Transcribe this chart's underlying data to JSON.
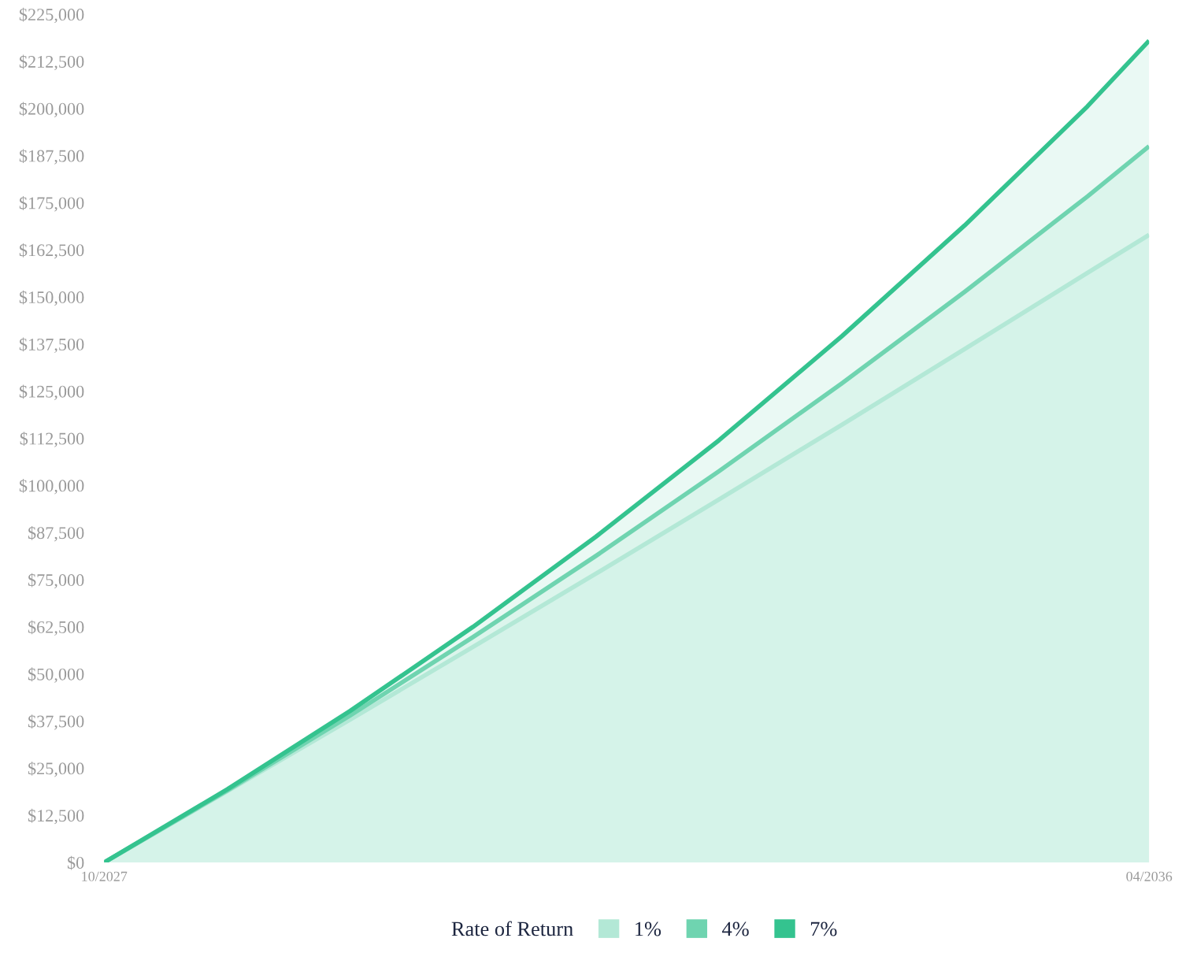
{
  "chart_data": {
    "type": "area",
    "x": [
      "2027-10",
      "2028-10",
      "2029-10",
      "2030-10",
      "2031-10",
      "2032-10",
      "2033-10",
      "2034-10",
      "2035-10",
      "2036-04"
    ],
    "series": [
      {
        "name": "1%",
        "color": "#b3e8d6",
        "values": [
          0,
          18900,
          37900,
          57200,
          76600,
          96300,
          116100,
          136200,
          156400,
          166500
        ]
      },
      {
        "name": "4%",
        "color": "#6fd4b0",
        "values": [
          0,
          19100,
          39000,
          59800,
          81300,
          103800,
          127100,
          151400,
          176700,
          190000
        ]
      },
      {
        "name": "7%",
        "color": "#34c38f",
        "values": [
          0,
          19400,
          40200,
          62500,
          86400,
          112000,
          139600,
          169000,
          200600,
          218000
        ]
      }
    ],
    "ylim": [
      0,
      225000
    ],
    "yticks": [
      {
        "value": 0,
        "label": "$0"
      },
      {
        "value": 12500,
        "label": "$12,500"
      },
      {
        "value": 25000,
        "label": "$25,000"
      },
      {
        "value": 37500,
        "label": "$37,500"
      },
      {
        "value": 50000,
        "label": "$50,000"
      },
      {
        "value": 62500,
        "label": "$62,500"
      },
      {
        "value": 75000,
        "label": "$75,000"
      },
      {
        "value": 87500,
        "label": "$87,500"
      },
      {
        "value": 100000,
        "label": "$100,000"
      },
      {
        "value": 112500,
        "label": "$112,500"
      },
      {
        "value": 125000,
        "label": "$125,000"
      },
      {
        "value": 137500,
        "label": "$137,500"
      },
      {
        "value": 150000,
        "label": "$150,000"
      },
      {
        "value": 162500,
        "label": "$162,500"
      },
      {
        "value": 175000,
        "label": "$175,000"
      },
      {
        "value": 187500,
        "label": "$187,500"
      },
      {
        "value": 200000,
        "label": "$200,000"
      },
      {
        "value": 212500,
        "label": "$212,500"
      },
      {
        "value": 225000,
        "label": "$225,000"
      }
    ],
    "xlim": [
      "2027-10",
      "2036-04"
    ],
    "xticks": [
      {
        "value": "2027-10",
        "label": "10/2027"
      },
      {
        "value": "2036-04",
        "label": "04/2036"
      }
    ],
    "legend": "bottom",
    "legend_title": "Rate of Return",
    "grid": false,
    "marker": "none",
    "line_style": "solid"
  }
}
